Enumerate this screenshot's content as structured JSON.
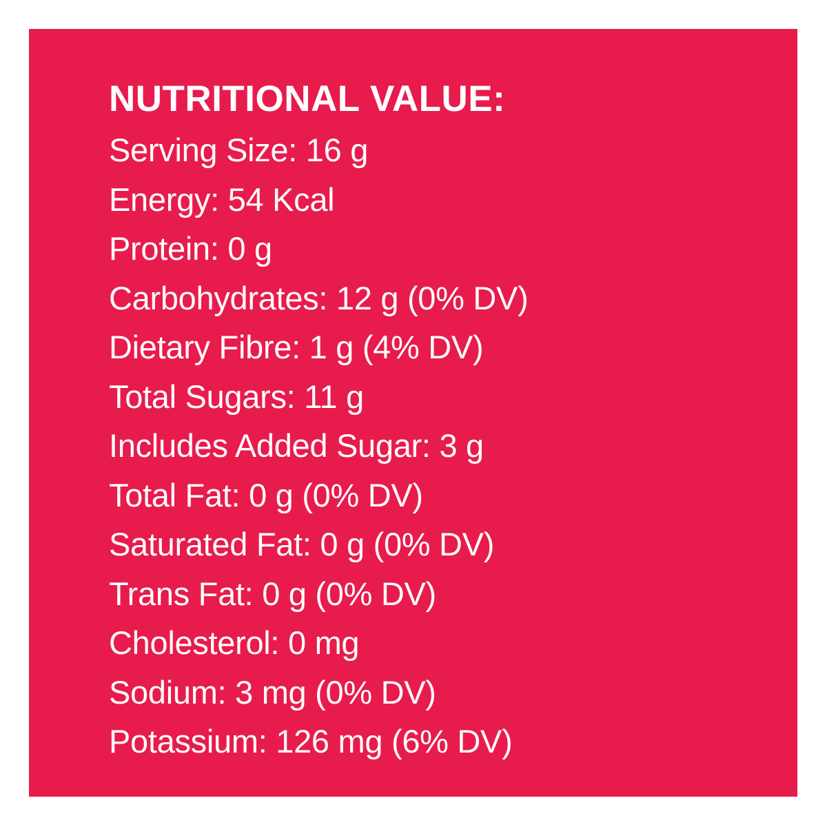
{
  "page": {
    "background_color": "#FFFFFF"
  },
  "label": {
    "background_color": "#E81B4D",
    "text_color": "#FFFFFF",
    "title": "NUTRITIONAL VALUE:",
    "rows": [
      {
        "label": "Serving Size:",
        "value": "16 g"
      },
      {
        "label": "Energy:",
        "value": "54 Kcal"
      },
      {
        "label": "Protein:",
        "value": "0 g"
      },
      {
        "label": "Carbohydrates:",
        "value": "12 g (0% DV)"
      },
      {
        "label": "Dietary Fibre:",
        "value": "1 g (4% DV)"
      },
      {
        "label": "Total Sugars:",
        "value": "11 g"
      },
      {
        "label": "Includes Added Sugar:",
        "value": "3 g"
      },
      {
        "label": "Total Fat:",
        "value": "0 g (0% DV)"
      },
      {
        "label": "Saturated Fat:",
        "value": "0 g (0% DV)"
      },
      {
        "label": "Trans Fat:",
        "value": "0 g (0% DV)"
      },
      {
        "label": "Cholesterol:",
        "value": "0 mg"
      },
      {
        "label": "Sodium:",
        "value": "3 mg (0% DV)"
      },
      {
        "label": "Potassium:",
        "value": "126 mg (6% DV)"
      }
    ]
  }
}
